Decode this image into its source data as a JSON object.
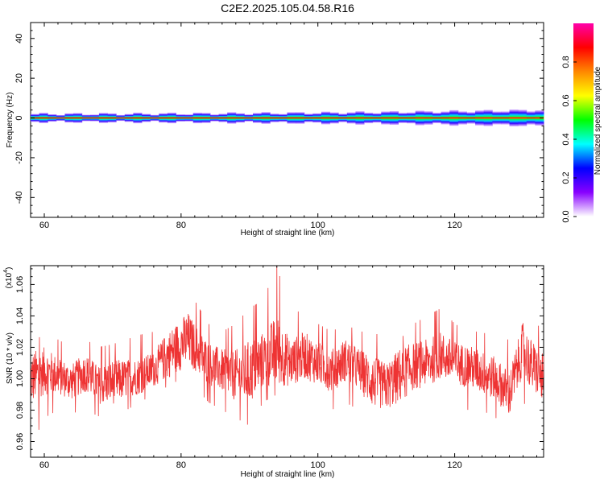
{
  "title": "C2E2.2025.105.04.58.R16",
  "chart_data": [
    {
      "type": "heatmap",
      "xlabel": "Height of straight line (km)",
      "ylabel": "Frequency (Hz)",
      "xlim": [
        58,
        133
      ],
      "ylim": [
        -50,
        48
      ],
      "xticks": [
        60,
        80,
        100,
        120
      ],
      "yticks": [
        40,
        20,
        0,
        -20,
        -40
      ],
      "ytick_labels": [
        "40",
        "20",
        "0",
        "-20",
        "-40"
      ],
      "band_center_hz": 0,
      "band_halfwidth_hz": [
        2,
        4
      ],
      "grid": false
    },
    {
      "type": "colorbar",
      "label": "Normalized spectral amplitude",
      "range": [
        0,
        1
      ],
      "ticks": [
        0.0,
        0.2,
        0.4,
        0.6,
        0.8
      ],
      "tick_labels": [
        "0.0",
        "0.2",
        "0.4",
        "0.6",
        "0.8"
      ],
      "colormap": [
        "#ffffff",
        "#8800ff",
        "#0000ff",
        "#00ffff",
        "#00ff00",
        "#ffff00",
        "#ff8800",
        "#ff0000",
        "#ff00aa"
      ]
    },
    {
      "type": "line",
      "series": [
        {
          "color": "#ee3333",
          "x": [
            58,
            60,
            62,
            64,
            66,
            68,
            70,
            72,
            74,
            76,
            78,
            80,
            81,
            82,
            84,
            86,
            88,
            90,
            92,
            94,
            96,
            98,
            100,
            102,
            104,
            106,
            108,
            110,
            112,
            114,
            116,
            118,
            120,
            122,
            124,
            126,
            128,
            130,
            131,
            133
          ],
          "y": [
            1.0,
            1.005,
            1.002,
            0.998,
            1.004,
            0.996,
            0.998,
            1.0,
            1.002,
            1.006,
            1.015,
            1.022,
            1.025,
            1.02,
            1.01,
            1.005,
            1.002,
            1.004,
            1.012,
            1.018,
            1.01,
            1.015,
            1.01,
            1.005,
            1.012,
            1.006,
            0.998,
            0.995,
            1.002,
            1.008,
            1.01,
            1.015,
            1.01,
            1.008,
            1.004,
            1.0,
            0.99,
            1.02,
            1.01,
            1.0
          ],
          "y_min_envelope": [
            0.956,
            0.975,
            0.98,
            0.978,
            0.98,
            0.976,
            0.97,
            0.98,
            0.985,
            0.99,
            0.995,
            1.0,
            1.0,
            0.995,
            0.985,
            0.98,
            0.975,
            0.97,
            0.985,
            0.99,
            0.985,
            0.99,
            0.985,
            0.98,
            0.985,
            0.98,
            0.97,
            0.97,
            0.96,
            0.98,
            0.985,
            0.99,
            0.985,
            0.98,
            0.98,
            0.975,
            0.972,
            0.985,
            0.98,
            0.975
          ],
          "y_max_envelope": [
            1.02,
            1.03,
            1.025,
            1.02,
            1.025,
            1.02,
            1.022,
            1.025,
            1.028,
            1.03,
            1.05,
            1.06,
            1.065,
            1.05,
            1.035,
            1.03,
            1.035,
            1.045,
            1.05,
            1.072,
            1.04,
            1.045,
            1.035,
            1.03,
            1.035,
            1.03,
            1.03,
            1.025,
            1.025,
            1.035,
            1.04,
            1.045,
            1.035,
            1.03,
            1.03,
            1.025,
            1.025,
            1.045,
            1.04,
            1.03
          ]
        }
      ],
      "xlabel": "Height of straight line (km)",
      "ylabel": "SNR (10 * v/v)",
      "ylabel_exponent": "(x10",
      "ylabel_exponent_power": "4",
      "ylabel_exponent_close": ")",
      "xlim": [
        58,
        133
      ],
      "ylim": [
        0.95,
        1.072
      ],
      "xticks": [
        60,
        80,
        100,
        120
      ],
      "yticks": [
        0.96,
        0.98,
        1.0,
        1.02,
        1.04,
        1.06
      ],
      "ytick_labels": [
        "0.96",
        "0.98",
        "1.00",
        "1.02",
        "1.04",
        "1.06"
      ],
      "grid": false
    }
  ]
}
